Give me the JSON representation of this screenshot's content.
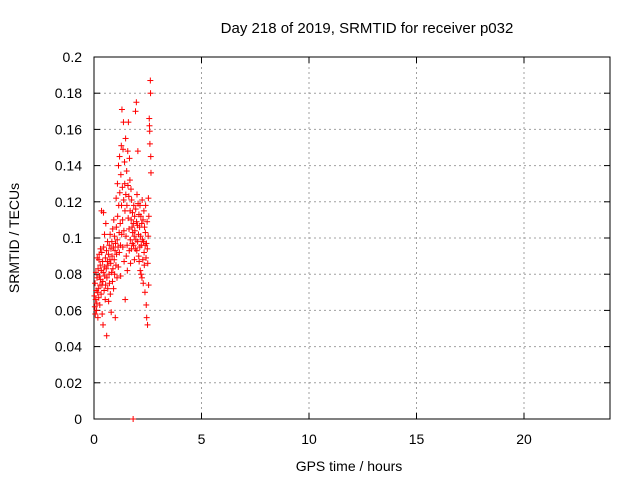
{
  "chart_data": {
    "type": "scatter",
    "title": "Day 218 of 2019, SRMTID for receiver p032",
    "xlabel": "GPS time / hours",
    "ylabel": "SRMTID / TECUs",
    "xlim": [
      0,
      24
    ],
    "ylim": [
      0,
      0.2
    ],
    "xticks": [
      0,
      5,
      10,
      15,
      20
    ],
    "xtick_labels": [
      "0",
      "5",
      "10",
      "15",
      "20"
    ],
    "yticks": [
      0,
      0.02,
      0.04,
      0.06,
      0.08,
      0.1,
      0.12,
      0.14,
      0.16,
      0.18,
      0.2
    ],
    "ytick_labels": [
      "0",
      "0.02",
      "0.04",
      "0.06",
      "0.08",
      "0.1",
      "0.12",
      "0.14",
      "0.16",
      "0.18",
      "0.2"
    ],
    "grid": true,
    "marker": "plus",
    "marker_color": "#ff0000",
    "series": [
      {
        "points": [
          [
            0.02,
            0.068
          ],
          [
            0.04,
            0.062
          ],
          [
            0.05,
            0.075
          ],
          [
            0.06,
            0.058
          ],
          [
            0.08,
            0.066
          ],
          [
            0.09,
            0.081
          ],
          [
            0.1,
            0.071
          ],
          [
            0.12,
            0.06
          ],
          [
            0.13,
            0.064
          ],
          [
            0.14,
            0.078
          ],
          [
            0.15,
            0.089
          ],
          [
            0.17,
            0.07
          ],
          [
            0.18,
            0.056
          ],
          [
            0.19,
            0.083
          ],
          [
            0.2,
            0.072
          ],
          [
            0.22,
            0.067
          ],
          [
            0.23,
            0.088
          ],
          [
            0.24,
            0.091
          ],
          [
            0.25,
            0.079
          ],
          [
            0.27,
            0.063
          ],
          [
            0.28,
            0.074
          ],
          [
            0.29,
            0.085
          ],
          [
            0.3,
            0.094
          ],
          [
            0.31,
            0.077
          ],
          [
            0.33,
            0.069
          ],
          [
            0.34,
            0.082
          ],
          [
            0.35,
            0.115
          ],
          [
            0.36,
            0.092
          ],
          [
            0.37,
            0.074
          ],
          [
            0.38,
            0.058
          ],
          [
            0.4,
            0.087
          ],
          [
            0.41,
            0.076
          ],
          [
            0.42,
            0.052
          ],
          [
            0.43,
            0.081
          ],
          [
            0.44,
            0.114
          ],
          [
            0.45,
            0.095
          ],
          [
            0.47,
            0.071
          ],
          [
            0.48,
            0.084
          ],
          [
            0.49,
            0.102
          ],
          [
            0.5,
            0.079
          ],
          [
            0.52,
            0.066
          ],
          [
            0.53,
            0.089
          ],
          [
            0.54,
            0.074
          ],
          [
            0.55,
            0.108
          ],
          [
            0.57,
            0.083
          ],
          [
            0.58,
            0.093
          ],
          [
            0.59,
            0.046
          ],
          [
            0.6,
            0.078
          ],
          [
            0.62,
            0.087
          ],
          [
            0.63,
            0.098
          ],
          [
            0.64,
            0.072
          ],
          [
            0.65,
            0.085
          ],
          [
            0.67,
            0.091
          ],
          [
            0.68,
            0.065
          ],
          [
            0.7,
            0.08
          ],
          [
            0.71,
            0.096
          ],
          [
            0.72,
            0.075
          ],
          [
            0.74,
            0.088
          ],
          [
            0.75,
            0.102
          ],
          [
            0.76,
            0.069
          ],
          [
            0.78,
            0.086
          ],
          [
            0.79,
            0.094
          ],
          [
            0.8,
            0.059
          ],
          [
            0.82,
            0.081
          ],
          [
            0.83,
            0.098
          ],
          [
            0.84,
            0.09
          ],
          [
            0.86,
            0.076
          ],
          [
            0.87,
            0.105
          ],
          [
            0.88,
            0.083
          ],
          [
            0.9,
            0.095
          ],
          [
            0.91,
            0.072
          ],
          [
            0.92,
            0.11
          ],
          [
            0.94,
            0.088
          ],
          [
            0.95,
            0.101
          ],
          [
            0.96,
            0.08
          ],
          [
            0.98,
            0.093
          ],
          [
            0.99,
            0.056
          ],
          [
            1.0,
            0.097
          ],
          [
            1.02,
            0.085
          ],
          [
            1.03,
            0.122
          ],
          [
            1.04,
            0.106
          ],
          [
            1.05,
            0.091
          ],
          [
            1.07,
            0.078
          ],
          [
            1.08,
            0.099
          ],
          [
            1.09,
            0.13
          ],
          [
            1.1,
            0.112
          ],
          [
            1.12,
            0.095
          ],
          [
            1.13,
            0.084
          ],
          [
            1.14,
            0.14
          ],
          [
            1.15,
            0.118
          ],
          [
            1.17,
            0.103
          ],
          [
            1.18,
            0.092
          ],
          [
            1.19,
            0.145
          ],
          [
            1.2,
            0.125
          ],
          [
            1.22,
            0.108
          ],
          [
            1.23,
            0.096
          ],
          [
            1.24,
            0.079
          ],
          [
            1.25,
            0.135
          ],
          [
            1.27,
            0.151
          ],
          [
            1.28,
            0.118
          ],
          [
            1.29,
            0.102
          ],
          [
            1.3,
            0.171
          ],
          [
            1.32,
            0.128
          ],
          [
            1.33,
            0.11
          ],
          [
            1.34,
            0.095
          ],
          [
            1.35,
            0.149
          ],
          [
            1.37,
            0.164
          ],
          [
            1.38,
            0.121
          ],
          [
            1.39,
            0.104
          ],
          [
            1.4,
            0.087
          ],
          [
            1.42,
            0.142
          ],
          [
            1.43,
            0.13
          ],
          [
            1.44,
            0.115
          ],
          [
            1.45,
            0.066
          ],
          [
            1.47,
            0.155
          ],
          [
            1.48,
            0.124
          ],
          [
            1.49,
            0.101
          ],
          [
            1.5,
            0.09
          ],
          [
            1.52,
            0.137
          ],
          [
            1.53,
            0.118
          ],
          [
            1.54,
            0.096
          ],
          [
            1.55,
            0.082
          ],
          [
            1.57,
            0.148
          ],
          [
            1.58,
            0.129
          ],
          [
            1.59,
            0.111
          ],
          [
            1.6,
            0.164
          ],
          [
            1.62,
            0.123
          ],
          [
            1.63,
            0.105
          ],
          [
            1.64,
            0.093
          ],
          [
            1.65,
            0.144
          ],
          [
            1.67,
            0.132
          ],
          [
            1.68,
            0.115
          ],
          [
            1.69,
            0.099
          ],
          [
            1.7,
            0.086
          ],
          [
            1.72,
            0.127
          ],
          [
            1.73,
            0.11
          ],
          [
            1.74,
            0.094
          ],
          [
            1.75,
            0.121
          ],
          [
            1.77,
            0.106
          ],
          [
            1.78,
            0.097
          ],
          [
            1.79,
            0.114
          ],
          [
            1.8,
            0.103
          ],
          [
            1.82,
            0.0
          ],
          [
            1.83,
            0.108
          ],
          [
            1.84,
            0.096
          ],
          [
            1.85,
            0.118
          ],
          [
            1.87,
            0.101
          ],
          [
            1.88,
            0.088
          ],
          [
            1.89,
            0.112
          ],
          [
            1.9,
            0.104
          ],
          [
            1.92,
            0.094
          ],
          [
            1.93,
            0.17
          ],
          [
            1.94,
            0.116
          ],
          [
            1.95,
            0.099
          ],
          [
            1.97,
            0.175
          ],
          [
            1.98,
            0.109
          ],
          [
            1.99,
            0.093
          ],
          [
            2.0,
            0.124
          ],
          [
            2.02,
            0.107
          ],
          [
            2.03,
            0.098
          ],
          [
            2.04,
            0.148
          ],
          [
            2.05,
            0.119
          ],
          [
            2.07,
            0.102
          ],
          [
            2.08,
            0.09
          ],
          [
            2.09,
            0.113
          ],
          [
            2.1,
            0.087
          ],
          [
            2.12,
            0.106
          ],
          [
            2.13,
            0.095
          ],
          [
            2.14,
            0.118
          ],
          [
            2.15,
            0.082
          ],
          [
            2.17,
            0.101
          ],
          [
            2.18,
            0.112
          ],
          [
            2.19,
            0.08
          ],
          [
            2.2,
            0.096
          ],
          [
            2.22,
            0.108
          ],
          [
            2.23,
            0.078
          ],
          [
            2.24,
            0.121
          ],
          [
            2.25,
            0.099
          ],
          [
            2.27,
            0.088
          ],
          [
            2.28,
            0.11
          ],
          [
            2.29,
            0.075
          ],
          [
            2.3,
            0.098
          ],
          [
            2.32,
            0.115
          ],
          [
            2.33,
            0.092
          ],
          [
            2.34,
            0.085
          ],
          [
            2.35,
            0.106
          ],
          [
            2.37,
            0.07
          ],
          [
            2.38,
            0.096
          ],
          [
            2.39,
            0.103
          ],
          [
            2.4,
            0.118
          ],
          [
            2.42,
            0.089
          ],
          [
            2.43,
            0.063
          ],
          [
            2.44,
            0.097
          ],
          [
            2.45,
            0.056
          ],
          [
            2.47,
            0.109
          ],
          [
            2.48,
            0.094
          ],
          [
            2.49,
            0.052
          ],
          [
            2.5,
            0.086
          ],
          [
            2.52,
            0.101
          ],
          [
            2.53,
            0.122
          ],
          [
            2.54,
            0.074
          ],
          [
            2.55,
            0.112
          ],
          [
            2.57,
            0.166
          ],
          [
            2.58,
            0.162
          ],
          [
            2.59,
            0.159
          ],
          [
            2.6,
            0.152
          ],
          [
            2.62,
            0.187
          ],
          [
            2.63,
            0.18
          ],
          [
            2.64,
            0.145
          ],
          [
            2.65,
            0.136
          ]
        ]
      }
    ]
  }
}
